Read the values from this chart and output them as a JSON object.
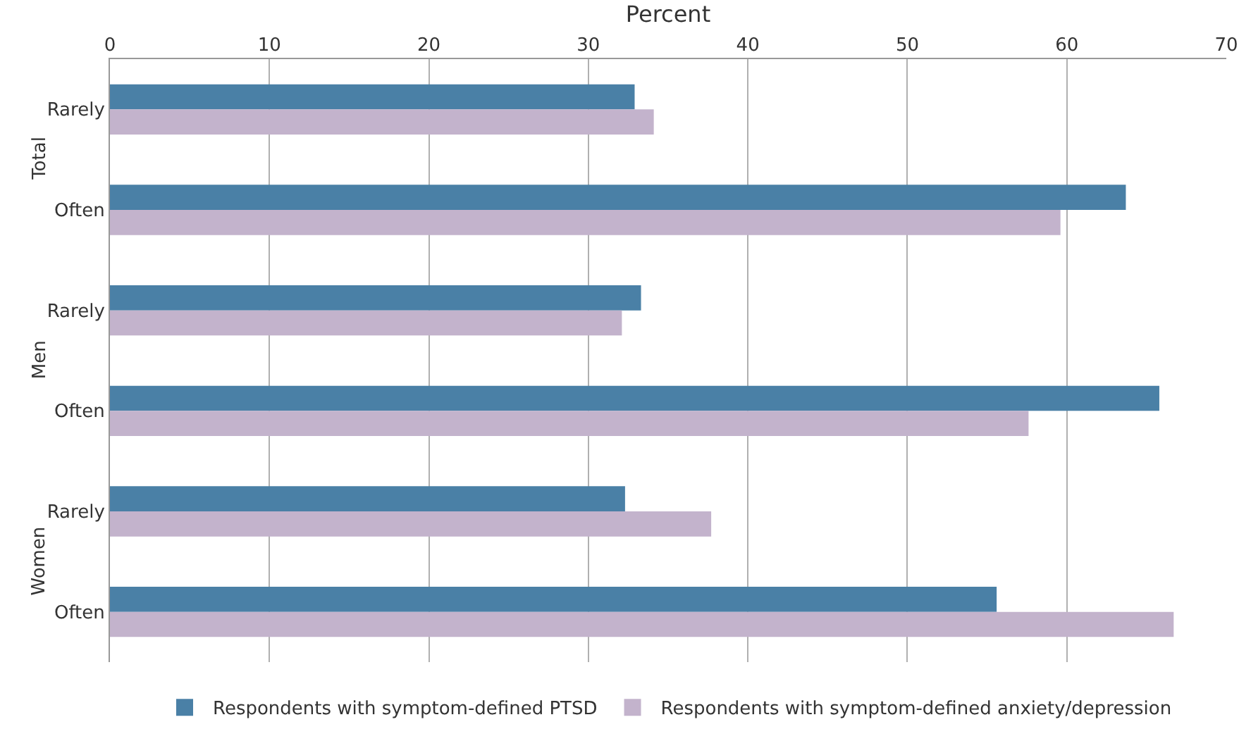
{
  "chart_data": {
    "type": "bar",
    "orientation": "horizontal",
    "xlabel": "Percent",
    "categories": [
      "Rarely",
      "Often",
      "Rarely",
      "Often",
      "Rarely",
      "Often"
    ],
    "annotations": [
      "Total",
      "Men",
      "Women"
    ],
    "series": [
      {
        "name": "Respondents with symptom-defined PTSD",
        "color": "#4a80a6",
        "values": [
          32.9,
          63.7,
          33.3,
          65.8,
          32.3,
          55.6
        ]
      },
      {
        "name": "Respondents with symptom-defined anxiety/depression",
        "color": "#c3b3cc",
        "values": [
          34.1,
          59.6,
          32.1,
          57.6,
          37.7,
          66.7
        ]
      }
    ],
    "xlim": [
      0,
      70
    ],
    "xticks": [
      0,
      10,
      20,
      30,
      40,
      50,
      60,
      70
    ],
    "grid": "x",
    "legend": "bottom"
  }
}
